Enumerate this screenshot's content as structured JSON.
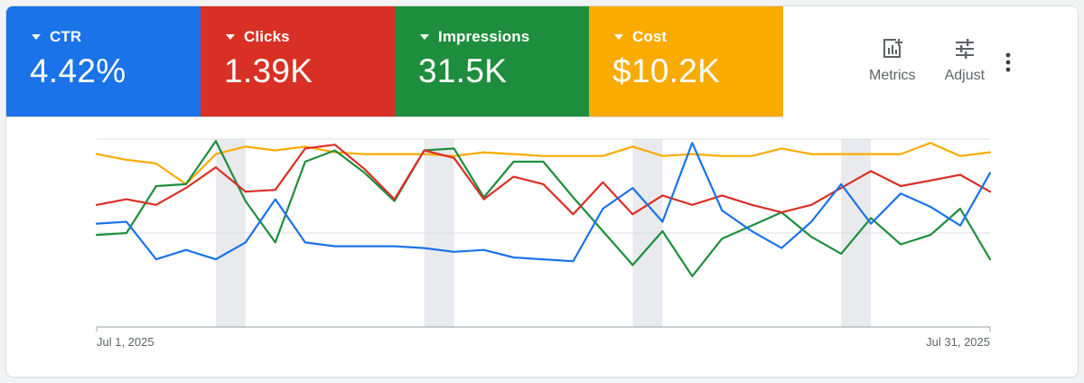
{
  "metrics": [
    {
      "label": "CTR",
      "value": "4.42%",
      "color": "#1a73e8"
    },
    {
      "label": "Clicks",
      "value": "1.39K",
      "color": "#d93025"
    },
    {
      "label": "Impressions",
      "value": "31.5K",
      "color": "#1e8e3e"
    },
    {
      "label": "Cost",
      "value": "$10.2K",
      "color": "#f9ab00"
    }
  ],
  "toolbar": {
    "metrics_label": "Metrics",
    "adjust_label": "Adjust",
    "metrics_icon": "add-chart-icon",
    "adjust_icon": "tune-icon",
    "more_icon": "more-vert-icon"
  },
  "chart_data": {
    "type": "line",
    "x_start_label": "Jul 1, 2025",
    "x_end_label": "Jul 31, 2025",
    "x": [
      "Jul 1, 2025",
      "Jul 2, 2025",
      "Jul 3, 2025",
      "Jul 4, 2025",
      "Jul 5, 2025",
      "Jul 6, 2025",
      "Jul 7, 2025",
      "Jul 8, 2025",
      "Jul 9, 2025",
      "Jul 10, 2025",
      "Jul 11, 2025",
      "Jul 12, 2025",
      "Jul 13, 2025",
      "Jul 14, 2025",
      "Jul 15, 2025",
      "Jul 16, 2025",
      "Jul 17, 2025",
      "Jul 18, 2025",
      "Jul 19, 2025",
      "Jul 20, 2025",
      "Jul 21, 2025",
      "Jul 22, 2025",
      "Jul 23, 2025",
      "Jul 24, 2025",
      "Jul 25, 2025",
      "Jul 26, 2025",
      "Jul 27, 2025",
      "Jul 28, 2025",
      "Jul 29, 2025",
      "Jul 30, 2025",
      "Jul 31, 2025"
    ],
    "ylim": [
      0,
      100
    ],
    "gridlines": [
      0,
      50,
      100
    ],
    "shaded_ranges": [
      [
        4,
        5
      ],
      [
        11,
        12
      ],
      [
        18,
        19
      ],
      [
        25,
        26
      ]
    ],
    "shade_color": "#e8eaed",
    "series": [
      {
        "metric": "CTR",
        "color": "#1a73e8",
        "values": [
          55,
          56,
          36,
          41,
          36,
          45,
          68,
          45,
          43,
          43,
          43,
          42,
          40,
          41,
          37,
          36,
          35,
          63,
          74,
          56,
          98,
          62,
          51,
          42,
          56,
          76,
          55,
          71,
          64,
          54,
          82
        ]
      },
      {
        "metric": "Clicks",
        "color": "#d93025",
        "values": [
          65,
          68,
          65,
          74,
          85,
          72,
          73,
          95,
          97,
          84,
          68,
          94,
          90,
          68,
          80,
          76,
          60,
          77,
          60,
          70,
          65,
          70,
          65,
          61,
          65,
          74,
          83,
          75,
          78,
          81,
          72
        ]
      },
      {
        "metric": "Impressions",
        "color": "#1e8e3e",
        "values": [
          49,
          50,
          75,
          76,
          99,
          67,
          45,
          88,
          94,
          82,
          67,
          94,
          95,
          69,
          88,
          88,
          69,
          51,
          33,
          51,
          27,
          47,
          54,
          61,
          48,
          39,
          58,
          44,
          49,
          63,
          36
        ]
      },
      {
        "metric": "Cost",
        "color": "#f9ab00",
        "values": [
          92,
          89,
          87,
          76,
          92,
          96,
          94,
          96,
          93,
          92,
          92,
          92,
          91,
          93,
          92,
          91,
          91,
          91,
          96,
          91,
          92,
          91,
          91,
          95,
          92,
          92,
          92,
          92,
          98,
          91,
          93
        ]
      }
    ]
  }
}
